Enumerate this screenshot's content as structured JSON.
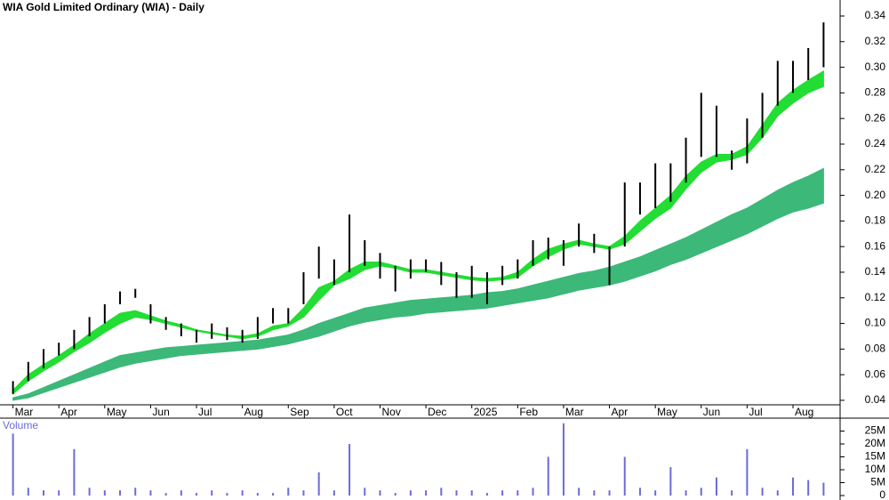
{
  "chart_data": [
    {
      "type": "price_bands",
      "title": "WIA Gold Limited Ordinary (WIA) - Daily",
      "categories": [
        "Mar",
        null,
        null,
        "Apr",
        null,
        null,
        "May",
        null,
        null,
        "Jun",
        null,
        null,
        "Jul",
        null,
        null,
        "Aug",
        null,
        null,
        "Sep",
        null,
        null,
        "Oct",
        null,
        null,
        "Nov",
        null,
        null,
        "Dec",
        null,
        null,
        "2025",
        null,
        null,
        "Feb",
        null,
        null,
        "Mar",
        null,
        null,
        "Apr",
        null,
        null,
        "May",
        null,
        null,
        "Jun",
        null,
        null,
        "Jul",
        null,
        null,
        "Aug",
        null,
        null
      ],
      "high": [
        0.055,
        0.07,
        0.08,
        0.085,
        0.095,
        0.105,
        0.115,
        0.125,
        0.127,
        0.115,
        0.105,
        0.1,
        0.095,
        0.1,
        0.097,
        0.095,
        0.105,
        0.112,
        0.112,
        0.14,
        0.16,
        0.15,
        0.185,
        0.165,
        0.155,
        0.145,
        0.15,
        0.15,
        0.148,
        0.14,
        0.145,
        0.14,
        0.145,
        0.15,
        0.165,
        0.167,
        0.165,
        0.178,
        0.17,
        0.16,
        0.21,
        0.21,
        0.225,
        0.225,
        0.245,
        0.28,
        0.27,
        0.235,
        0.26,
        0.28,
        0.305,
        0.305,
        0.315,
        0.335
      ],
      "low": [
        0.045,
        0.055,
        0.065,
        0.075,
        0.08,
        0.09,
        0.1,
        0.115,
        0.12,
        0.1,
        0.095,
        0.09,
        0.085,
        0.088,
        0.087,
        0.085,
        0.088,
        0.1,
        0.1,
        0.115,
        0.135,
        0.13,
        0.14,
        0.145,
        0.135,
        0.125,
        0.135,
        0.14,
        0.13,
        0.12,
        0.12,
        0.115,
        0.13,
        0.135,
        0.145,
        0.15,
        0.145,
        0.16,
        0.155,
        0.13,
        0.16,
        0.185,
        0.19,
        0.195,
        0.21,
        0.23,
        0.23,
        0.22,
        0.225,
        0.245,
        0.27,
        0.28,
        0.29,
        0.3
      ],
      "bar_color": "#000000",
      "fast_band": {
        "color": "#22dd33",
        "lower": [
          0.045,
          0.055,
          0.063,
          0.07,
          0.078,
          0.085,
          0.093,
          0.1,
          0.105,
          0.103,
          0.1,
          0.097,
          0.094,
          0.092,
          0.09,
          0.088,
          0.09,
          0.095,
          0.098,
          0.105,
          0.118,
          0.13,
          0.135,
          0.142,
          0.145,
          0.143,
          0.14,
          0.14,
          0.138,
          0.136,
          0.134,
          0.133,
          0.134,
          0.136,
          0.145,
          0.152,
          0.158,
          0.162,
          0.16,
          0.158,
          0.162,
          0.172,
          0.182,
          0.19,
          0.205,
          0.218,
          0.226,
          0.228,
          0.232,
          0.245,
          0.262,
          0.272,
          0.28,
          0.285
        ],
        "upper": [
          0.048,
          0.06,
          0.068,
          0.075,
          0.083,
          0.092,
          0.1,
          0.108,
          0.11,
          0.106,
          0.102,
          0.099,
          0.095,
          0.093,
          0.091,
          0.09,
          0.092,
          0.098,
          0.1,
          0.112,
          0.128,
          0.133,
          0.142,
          0.148,
          0.148,
          0.145,
          0.142,
          0.142,
          0.14,
          0.138,
          0.136,
          0.135,
          0.136,
          0.14,
          0.15,
          0.158,
          0.162,
          0.165,
          0.162,
          0.16,
          0.168,
          0.18,
          0.19,
          0.2,
          0.215,
          0.226,
          0.232,
          0.232,
          0.238,
          0.255,
          0.272,
          0.282,
          0.29,
          0.297
        ]
      },
      "slow_band": {
        "color": "#3cb878",
        "lower": [
          0.04,
          0.042,
          0.046,
          0.05,
          0.054,
          0.058,
          0.062,
          0.066,
          0.069,
          0.071,
          0.073,
          0.075,
          0.076,
          0.077,
          0.078,
          0.079,
          0.08,
          0.082,
          0.084,
          0.087,
          0.09,
          0.094,
          0.098,
          0.101,
          0.103,
          0.105,
          0.106,
          0.108,
          0.109,
          0.11,
          0.111,
          0.112,
          0.114,
          0.116,
          0.118,
          0.12,
          0.123,
          0.126,
          0.128,
          0.13,
          0.133,
          0.137,
          0.141,
          0.146,
          0.15,
          0.155,
          0.16,
          0.165,
          0.17,
          0.176,
          0.182,
          0.187,
          0.19,
          0.194
        ],
        "upper": [
          0.042,
          0.045,
          0.05,
          0.055,
          0.06,
          0.065,
          0.07,
          0.075,
          0.077,
          0.079,
          0.081,
          0.082,
          0.083,
          0.084,
          0.085,
          0.086,
          0.087,
          0.089,
          0.091,
          0.095,
          0.1,
          0.104,
          0.108,
          0.112,
          0.114,
          0.116,
          0.118,
          0.119,
          0.12,
          0.121,
          0.122,
          0.124,
          0.125,
          0.127,
          0.13,
          0.133,
          0.136,
          0.139,
          0.141,
          0.144,
          0.148,
          0.152,
          0.157,
          0.162,
          0.167,
          0.173,
          0.179,
          0.185,
          0.19,
          0.197,
          0.204,
          0.21,
          0.215,
          0.221
        ]
      },
      "ylim": [
        0.0365,
        0.3525
      ],
      "yticks": [
        0.04,
        0.06,
        0.08,
        {
          "value": 0.1,
          "label": "0.10"
        },
        0.12,
        0.14,
        0.16,
        0.18,
        {
          "value": 0.2,
          "label": "0.20"
        },
        0.22,
        0.24,
        0.26,
        0.28,
        {
          "value": 0.3,
          "label": "0.30"
        },
        0.32,
        0.34
      ]
    },
    {
      "type": "bar",
      "title": "Volume",
      "color": "#6b6bd6",
      "values": [
        24,
        3,
        2,
        2,
        18,
        3,
        2,
        2,
        3,
        2,
        1,
        2,
        1,
        2,
        1,
        2,
        1,
        1,
        3,
        2,
        9,
        2,
        20,
        3,
        2,
        1,
        2,
        2,
        3,
        2,
        2,
        1,
        2,
        2,
        3,
        15,
        28,
        3,
        2,
        2,
        15,
        3,
        2,
        11,
        2,
        3,
        7,
        2,
        18,
        3,
        2,
        7,
        6,
        5
      ],
      "ylim": [
        0,
        30
      ],
      "yticks": [
        0,
        {
          "value": 5,
          "label": "5M"
        },
        {
          "value": 10,
          "label": "10M"
        },
        {
          "value": 15,
          "label": "15M"
        },
        {
          "value": 20,
          "label": "20M"
        },
        {
          "value": 25,
          "label": "25M"
        }
      ]
    }
  ]
}
